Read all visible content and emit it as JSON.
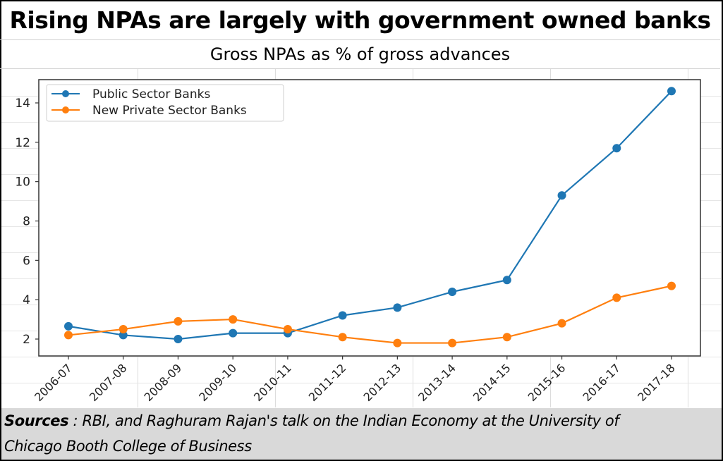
{
  "title": "Rising NPAs are largely with government owned banks",
  "subtitle": "Gross NPAs as % of gross advances",
  "footer": {
    "sources_label": "Sources",
    "sources_text": " : RBI, and Raghuram Rajan's talk on the Indian Economy at the University of",
    "sources_text_line2": "Chicago Booth College of Business"
  },
  "colors": {
    "public": "#1f77b4",
    "private": "#ff7f0e"
  },
  "chart_data": {
    "type": "line",
    "title": "Gross NPAs as % of gross advances",
    "xlabel": "",
    "ylabel": "",
    "x": [
      "2006-07",
      "2007-08",
      "2008-09",
      "2009-10",
      "2010-11",
      "2011-12",
      "2012-13",
      "2013-14",
      "2014-15",
      "2015-16",
      "2016-17",
      "2017-18"
    ],
    "series": [
      {
        "name": "Public Sector Banks",
        "color": "#1f77b4",
        "values": [
          2.65,
          2.2,
          2.0,
          2.3,
          2.3,
          3.2,
          3.6,
          4.4,
          5.0,
          9.3,
          11.7,
          14.6
        ]
      },
      {
        "name": "New Private Sector Banks",
        "color": "#ff7f0e",
        "values": [
          2.2,
          2.5,
          2.9,
          3.0,
          2.5,
          2.1,
          1.8,
          1.8,
          2.1,
          2.8,
          4.1,
          4.7
        ]
      }
    ],
    "yticks": [
      2,
      4,
      6,
      8,
      10,
      12,
      14
    ],
    "ylim": [
      1.1,
      15.2
    ],
    "grid": false,
    "legend": "top-left"
  }
}
